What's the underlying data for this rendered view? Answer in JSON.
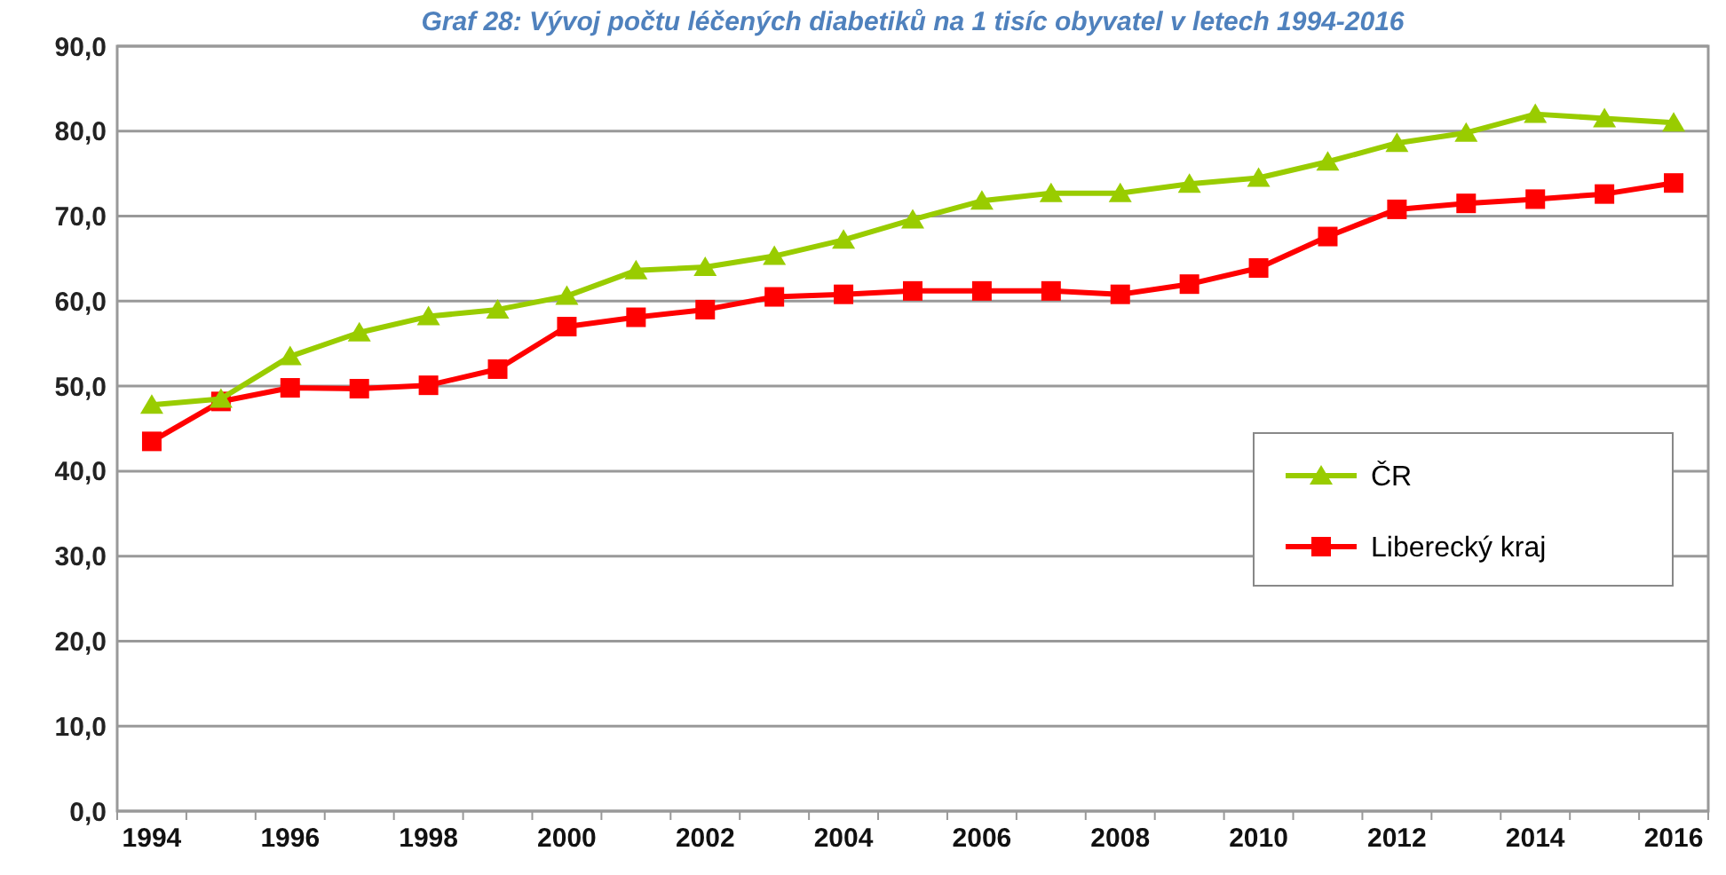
{
  "chart_data": {
    "type": "line",
    "title": "Graf 28: Vývoj počtu léčených diabetiků na 1 tisíc obyvatel v letech 1994-2016",
    "categories": [
      "1994",
      null,
      "1996",
      null,
      "1998",
      null,
      "2000",
      null,
      "2002",
      null,
      "2004",
      null,
      "2006",
      null,
      "2008",
      null,
      "2010",
      null,
      "2012",
      null,
      "2014",
      null,
      "2016"
    ],
    "series": [
      {
        "name": "ČR",
        "color": "#99cc00",
        "marker": "triangle",
        "values": [
          47.8,
          48.5,
          53.5,
          56.3,
          58.2,
          59.0,
          60.6,
          63.6,
          64.0,
          65.3,
          67.2,
          69.6,
          71.8,
          72.7,
          72.7,
          73.8,
          74.5,
          76.4,
          78.6,
          79.8,
          82.0,
          81.5,
          81.0
        ]
      },
      {
        "name": "Liberecký kraj",
        "color": "#ff0000",
        "marker": "square",
        "values": [
          43.5,
          48.2,
          49.8,
          49.7,
          50.1,
          52.0,
          57.0,
          58.1,
          59.0,
          60.5,
          60.8,
          61.2,
          61.2,
          61.2,
          60.8,
          62.0,
          63.9,
          67.6,
          70.8,
          71.5,
          72.0,
          72.6,
          73.9
        ]
      }
    ],
    "ylim": [
      0,
      90
    ],
    "yticks": [
      {
        "value": 0,
        "label": "0,0"
      },
      {
        "value": 10,
        "label": "10,0"
      },
      {
        "value": 20,
        "label": "20,0"
      },
      {
        "value": 30,
        "label": "30,0"
      },
      {
        "value": 40,
        "label": "40,0"
      },
      {
        "value": 50,
        "label": "50,0"
      },
      {
        "value": 60,
        "label": "60,0"
      },
      {
        "value": 70,
        "label": "70,0"
      },
      {
        "value": 80,
        "label": "80,0"
      },
      {
        "value": 90,
        "label": "90,0"
      }
    ],
    "grid": "y",
    "legend": "right",
    "line_style": "solid"
  }
}
